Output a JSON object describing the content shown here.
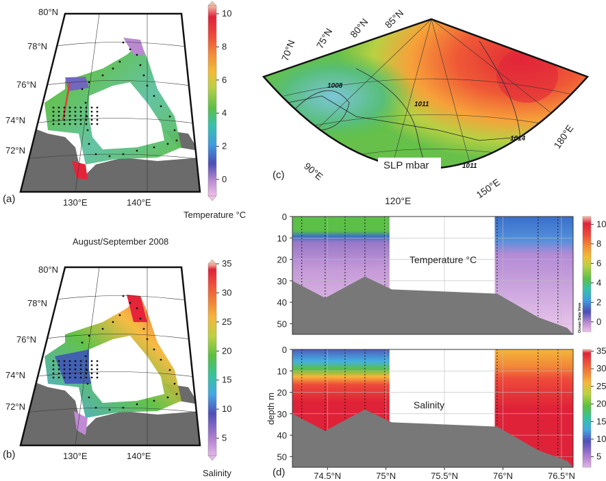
{
  "figure": {
    "title": "August/September 2008",
    "panel_labels": {
      "a": "(a)",
      "b": "(b)",
      "c": "(c)",
      "d": "(d)"
    }
  },
  "chart_data": [
    {
      "panel": "a",
      "type": "heatmap",
      "title": "",
      "colorbar_label": "Temperature °C",
      "colorbar_ticks": [
        0,
        2,
        4,
        6,
        8,
        10
      ],
      "colorbar_range": [
        -1,
        10.5
      ],
      "lat_labels": [
        "80°N",
        "78°N",
        "76°N",
        "74°N",
        "72°N"
      ],
      "lon_labels": [
        "130°E",
        "140°E"
      ]
    },
    {
      "panel": "b",
      "type": "heatmap",
      "title": "",
      "colorbar_label": "Salinity",
      "colorbar_ticks": [
        5,
        10,
        15,
        20,
        25,
        30,
        35
      ],
      "colorbar_range": [
        2,
        35
      ],
      "lat_labels": [
        "80°N",
        "78°N",
        "76°N",
        "74°N",
        "72°N"
      ],
      "lon_labels": [
        "130°E",
        "140°E"
      ]
    },
    {
      "panel": "c",
      "type": "heatmap",
      "title": "SLP mbar",
      "lat_labels": [
        "70°N",
        "75°N",
        "80°N",
        "85°N"
      ],
      "lon_labels": [
        "90°E",
        "120°E",
        "150°E",
        "180°E"
      ],
      "isobar_labels": [
        "1008",
        "1011",
        "1014",
        "1011"
      ]
    },
    {
      "panel": "d-top",
      "type": "heatmap",
      "title": "Temperature °C",
      "ylabel": "",
      "ylim": [
        55,
        0
      ],
      "yticks": [
        0,
        10,
        20,
        30,
        40,
        50
      ],
      "colorbar_ticks": [
        0,
        2,
        4,
        6,
        8,
        10
      ],
      "watermark": "Ocean Data View",
      "station_lats": [
        74.28,
        74.48,
        74.65,
        74.82,
        74.99,
        75.95,
        76.3,
        76.47
      ],
      "bottom_depth": [
        [
          74.2,
          30
        ],
        [
          74.48,
          38
        ],
        [
          74.82,
          28
        ],
        [
          75.05,
          34
        ],
        [
          75.95,
          36
        ],
        [
          76.3,
          47
        ],
        [
          76.55,
          52
        ]
      ]
    },
    {
      "panel": "d-bottom",
      "type": "heatmap",
      "title": "Salinity",
      "ylabel": "depth m",
      "ylim": [
        55,
        0
      ],
      "yticks": [
        0,
        10,
        20,
        30,
        40,
        50
      ],
      "xlabels": [
        "74.5°N",
        "75°N",
        "75.5°N",
        "76°N",
        "76.5°N"
      ],
      "colorbar_ticks": [
        5,
        10,
        15,
        20,
        25,
        30,
        35
      ],
      "station_lats": [
        74.28,
        74.48,
        74.65,
        74.82,
        74.99,
        75.95,
        76.3,
        76.47
      ],
      "bottom_depth": [
        [
          74.2,
          30
        ],
        [
          74.48,
          38
        ],
        [
          74.82,
          28
        ],
        [
          75.05,
          34
        ],
        [
          75.95,
          36
        ],
        [
          76.3,
          47
        ],
        [
          76.55,
          52
        ]
      ]
    }
  ],
  "colors": {
    "land": "#6b6b6b",
    "temp_scale": [
      "#f5b9e6",
      "#b98ad0",
      "#4b4db5",
      "#3f9be0",
      "#33c2b0",
      "#59bf4f",
      "#b7d144",
      "#f2bf33",
      "#f39237",
      "#ef4d3a",
      "#e5243a",
      "#f7b9a0"
    ],
    "sal_scale": [
      "#e0b0e6",
      "#b07ed0",
      "#4f4fb8",
      "#44a8e4",
      "#35c39d",
      "#5bbf3f",
      "#b9d23f",
      "#f6b73a",
      "#f18537",
      "#ee4a3a",
      "#df2238",
      "#f8b9a0"
    ]
  }
}
